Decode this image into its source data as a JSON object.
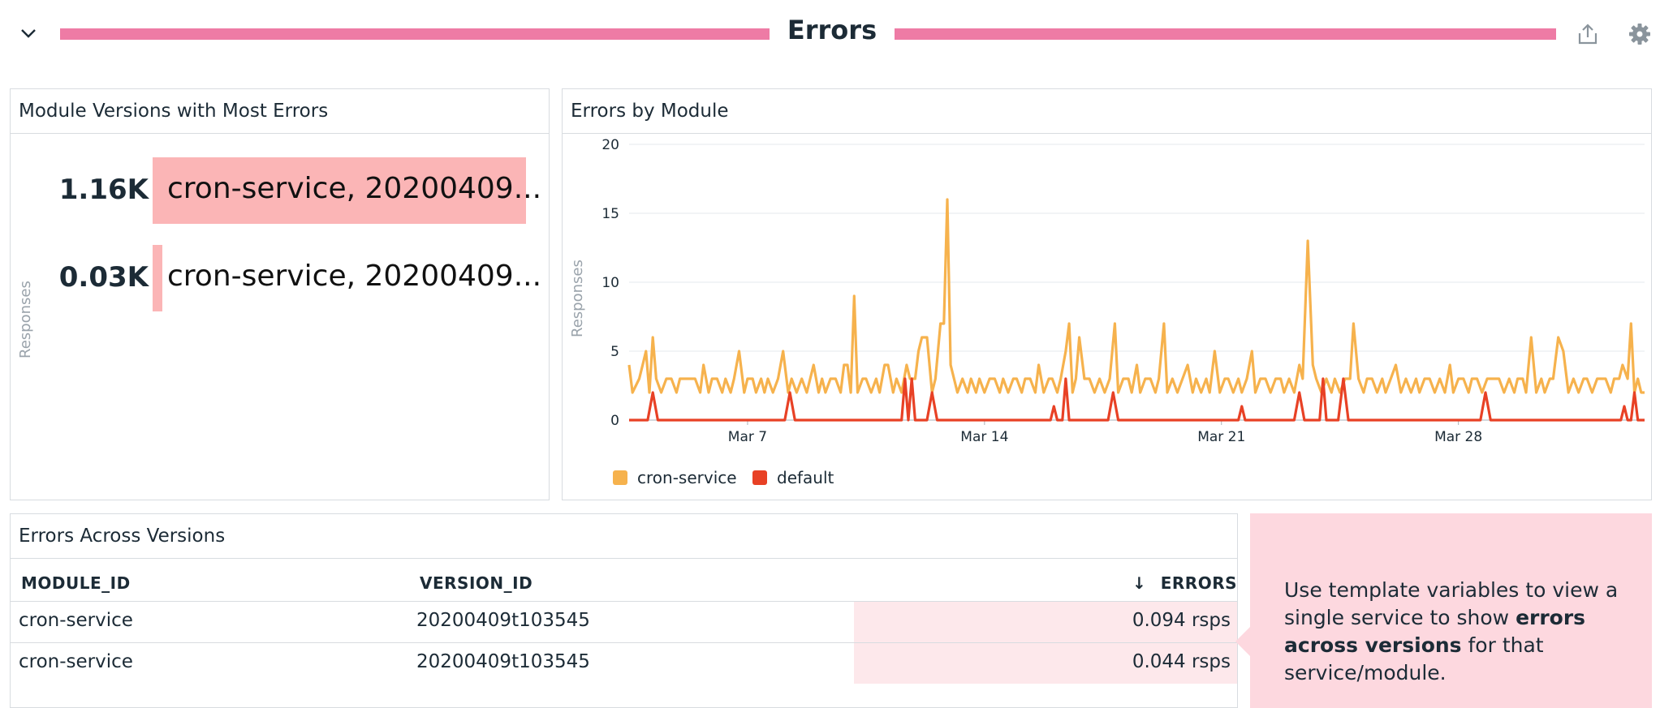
{
  "group": {
    "title": "Errors",
    "accent_color": "#ee7ba5",
    "icons": [
      "chevron-down-icon",
      "share-icon",
      "gear-icon"
    ]
  },
  "toplist": {
    "title": "Module Versions with Most Errors",
    "axis_label": "Responses",
    "bar_color": "#fbb5b6",
    "rows": [
      {
        "value": "1.16K",
        "amount": 1.16,
        "label": "cron-service, 20200409..."
      },
      {
        "value": "0.03K",
        "amount": 0.03,
        "label": "cron-service, 20200409..."
      }
    ]
  },
  "timeseries": {
    "title": "Errors by Module",
    "legend": [
      {
        "name": "cron-service",
        "color": "#f6b24d"
      },
      {
        "name": "default",
        "color": "#e84125"
      }
    ]
  },
  "chart_data": {
    "type": "line",
    "ylabel": "Responses",
    "ylim": [
      0,
      20
    ],
    "yticks": [
      0,
      5,
      10,
      15,
      20
    ],
    "xticks": [
      {
        "label": "Mar 7",
        "day": 7
      },
      {
        "label": "Mar 14",
        "day": 14
      },
      {
        "label": "Mar 21",
        "day": 21
      },
      {
        "label": "Mar 28",
        "day": 28
      }
    ],
    "xlim_days": [
      3.5,
      33.5
    ],
    "grid": true,
    "legend_position": "bottom-left",
    "series": [
      {
        "name": "cron-service",
        "color": "#f6b24d",
        "points": [
          [
            3.5,
            4
          ],
          [
            3.6,
            2
          ],
          [
            3.8,
            3
          ],
          [
            3.9,
            4
          ],
          [
            4.0,
            5
          ],
          [
            4.1,
            2
          ],
          [
            4.2,
            6
          ],
          [
            4.3,
            3
          ],
          [
            4.45,
            2
          ],
          [
            4.6,
            3
          ],
          [
            4.75,
            3
          ],
          [
            4.9,
            2
          ],
          [
            5.0,
            3
          ],
          [
            5.15,
            3
          ],
          [
            5.3,
            3
          ],
          [
            5.45,
            3
          ],
          [
            5.6,
            2
          ],
          [
            5.7,
            4
          ],
          [
            5.85,
            2
          ],
          [
            5.95,
            3
          ],
          [
            6.1,
            3
          ],
          [
            6.25,
            2
          ],
          [
            6.35,
            3
          ],
          [
            6.5,
            2
          ],
          [
            6.6,
            3
          ],
          [
            6.75,
            5
          ],
          [
            6.9,
            2
          ],
          [
            7.0,
            3
          ],
          [
            7.15,
            3
          ],
          [
            7.25,
            2
          ],
          [
            7.4,
            3
          ],
          [
            7.5,
            2
          ],
          [
            7.6,
            3
          ],
          [
            7.75,
            2
          ],
          [
            7.9,
            3
          ],
          [
            8.05,
            5
          ],
          [
            8.2,
            2
          ],
          [
            8.3,
            3
          ],
          [
            8.45,
            2
          ],
          [
            8.6,
            3
          ],
          [
            8.75,
            2
          ],
          [
            8.85,
            3
          ],
          [
            8.95,
            4
          ],
          [
            9.1,
            2
          ],
          [
            9.2,
            3
          ],
          [
            9.3,
            2
          ],
          [
            9.45,
            3
          ],
          [
            9.6,
            3
          ],
          [
            9.75,
            2
          ],
          [
            9.85,
            4
          ],
          [
            9.95,
            4
          ],
          [
            10.05,
            2
          ],
          [
            10.15,
            9
          ],
          [
            10.25,
            2
          ],
          [
            10.4,
            3
          ],
          [
            10.5,
            3
          ],
          [
            10.65,
            2
          ],
          [
            10.8,
            3
          ],
          [
            10.9,
            2
          ],
          [
            11.05,
            4
          ],
          [
            11.15,
            4
          ],
          [
            11.3,
            2
          ],
          [
            11.4,
            3
          ],
          [
            11.55,
            2
          ],
          [
            11.7,
            4
          ],
          [
            11.8,
            3
          ],
          [
            11.95,
            3
          ],
          [
            12.05,
            5
          ],
          [
            12.15,
            6
          ],
          [
            12.3,
            6
          ],
          [
            12.45,
            2
          ],
          [
            12.55,
            3
          ],
          [
            12.7,
            7
          ],
          [
            12.8,
            7
          ],
          [
            12.9,
            16
          ],
          [
            13.0,
            4
          ],
          [
            13.1,
            3
          ],
          [
            13.2,
            2
          ],
          [
            13.35,
            3
          ],
          [
            13.5,
            2
          ],
          [
            13.6,
            3
          ],
          [
            13.75,
            2
          ],
          [
            13.85,
            3
          ],
          [
            14.0,
            2
          ],
          [
            14.15,
            3
          ],
          [
            14.3,
            3
          ],
          [
            14.45,
            2
          ],
          [
            14.55,
            3
          ],
          [
            14.7,
            2
          ],
          [
            14.85,
            3
          ],
          [
            14.95,
            3
          ],
          [
            15.1,
            2
          ],
          [
            15.2,
            3
          ],
          [
            15.35,
            3
          ],
          [
            15.5,
            2
          ],
          [
            15.6,
            4
          ],
          [
            15.75,
            2
          ],
          [
            15.9,
            3
          ],
          [
            16.0,
            3
          ],
          [
            16.15,
            2
          ],
          [
            16.25,
            3
          ],
          [
            16.4,
            5
          ],
          [
            16.5,
            7
          ],
          [
            16.6,
            2
          ],
          [
            16.7,
            3
          ],
          [
            16.8,
            6
          ],
          [
            16.95,
            3
          ],
          [
            17.1,
            3
          ],
          [
            17.25,
            2
          ],
          [
            17.4,
            3
          ],
          [
            17.55,
            2
          ],
          [
            17.7,
            3
          ],
          [
            17.85,
            7
          ],
          [
            17.95,
            2
          ],
          [
            18.1,
            3
          ],
          [
            18.25,
            3
          ],
          [
            18.35,
            2
          ],
          [
            18.5,
            4
          ],
          [
            18.6,
            2
          ],
          [
            18.75,
            3
          ],
          [
            18.9,
            3
          ],
          [
            19.05,
            2
          ],
          [
            19.15,
            3
          ],
          [
            19.3,
            7
          ],
          [
            19.4,
            2
          ],
          [
            19.55,
            3
          ],
          [
            19.7,
            2
          ],
          [
            19.85,
            3
          ],
          [
            20.0,
            4
          ],
          [
            20.15,
            2
          ],
          [
            20.25,
            3
          ],
          [
            20.4,
            2
          ],
          [
            20.55,
            3
          ],
          [
            20.65,
            2
          ],
          [
            20.8,
            5
          ],
          [
            20.95,
            2
          ],
          [
            21.1,
            3
          ],
          [
            21.2,
            3
          ],
          [
            21.35,
            2
          ],
          [
            21.5,
            3
          ],
          [
            21.6,
            2
          ],
          [
            21.75,
            3
          ],
          [
            21.9,
            5
          ],
          [
            22.0,
            2
          ],
          [
            22.15,
            3
          ],
          [
            22.3,
            3
          ],
          [
            22.45,
            2
          ],
          [
            22.6,
            3
          ],
          [
            22.75,
            3
          ],
          [
            22.85,
            2
          ],
          [
            23.0,
            3
          ],
          [
            23.15,
            2
          ],
          [
            23.3,
            4
          ],
          [
            23.4,
            3
          ],
          [
            23.55,
            13
          ],
          [
            23.7,
            4
          ],
          [
            23.8,
            3
          ],
          [
            23.95,
            2
          ],
          [
            24.1,
            3
          ],
          [
            24.25,
            2
          ],
          [
            24.35,
            3
          ],
          [
            24.5,
            2
          ],
          [
            24.65,
            3
          ],
          [
            24.8,
            3
          ],
          [
            24.9,
            7
          ],
          [
            25.05,
            3
          ],
          [
            25.2,
            2
          ],
          [
            25.3,
            3
          ],
          [
            25.45,
            3
          ],
          [
            25.6,
            2
          ],
          [
            25.75,
            3
          ],
          [
            25.85,
            2
          ],
          [
            26.0,
            3
          ],
          [
            26.15,
            4
          ],
          [
            26.3,
            2
          ],
          [
            26.45,
            3
          ],
          [
            26.6,
            2
          ],
          [
            26.75,
            3
          ],
          [
            26.85,
            2
          ],
          [
            27.0,
            3
          ],
          [
            27.15,
            3
          ],
          [
            27.3,
            2
          ],
          [
            27.45,
            3
          ],
          [
            27.6,
            2
          ],
          [
            27.75,
            4
          ],
          [
            27.85,
            2
          ],
          [
            28.0,
            3
          ],
          [
            28.15,
            3
          ],
          [
            28.3,
            2
          ],
          [
            28.4,
            3
          ],
          [
            28.55,
            3
          ],
          [
            28.7,
            2
          ],
          [
            28.85,
            3
          ],
          [
            28.95,
            3
          ],
          [
            29.1,
            3
          ],
          [
            29.2,
            3
          ],
          [
            29.35,
            2
          ],
          [
            29.5,
            3
          ],
          [
            29.65,
            2
          ],
          [
            29.75,
            3
          ],
          [
            29.9,
            3
          ],
          [
            30.0,
            2
          ],
          [
            30.15,
            6
          ],
          [
            30.3,
            2
          ],
          [
            30.45,
            3
          ],
          [
            30.55,
            2
          ],
          [
            30.7,
            3
          ],
          [
            30.8,
            3
          ],
          [
            30.95,
            6
          ],
          [
            31.1,
            5
          ],
          [
            31.25,
            2
          ],
          [
            31.4,
            3
          ],
          [
            31.55,
            2
          ],
          [
            31.7,
            3
          ],
          [
            31.8,
            3
          ],
          [
            31.95,
            2
          ],
          [
            32.1,
            3
          ],
          [
            32.2,
            3
          ],
          [
            32.35,
            3
          ],
          [
            32.5,
            2
          ],
          [
            32.6,
            3
          ],
          [
            32.75,
            3
          ],
          [
            32.85,
            4
          ],
          [
            33.0,
            3
          ],
          [
            33.1,
            7
          ],
          [
            33.2,
            2
          ],
          [
            33.3,
            3
          ],
          [
            33.4,
            2
          ],
          [
            33.5,
            2
          ]
        ]
      },
      {
        "name": "default",
        "color": "#e84125",
        "points": [
          [
            3.5,
            0
          ],
          [
            4.05,
            0
          ],
          [
            4.2,
            2
          ],
          [
            4.35,
            0
          ],
          [
            8.1,
            0
          ],
          [
            8.25,
            2
          ],
          [
            8.4,
            0
          ],
          [
            11.55,
            0
          ],
          [
            11.65,
            3
          ],
          [
            11.75,
            0
          ],
          [
            11.85,
            3
          ],
          [
            11.95,
            0
          ],
          [
            12.3,
            0
          ],
          [
            12.45,
            2
          ],
          [
            12.6,
            0
          ],
          [
            15.95,
            0
          ],
          [
            16.05,
            1
          ],
          [
            16.15,
            0
          ],
          [
            16.3,
            0
          ],
          [
            16.4,
            3
          ],
          [
            16.5,
            0
          ],
          [
            17.65,
            0
          ],
          [
            17.8,
            2
          ],
          [
            17.95,
            0
          ],
          [
            21.5,
            0
          ],
          [
            21.6,
            1
          ],
          [
            21.7,
            0
          ],
          [
            23.15,
            0
          ],
          [
            23.3,
            2
          ],
          [
            23.45,
            0
          ],
          [
            23.9,
            0
          ],
          [
            24.0,
            3
          ],
          [
            24.1,
            0
          ],
          [
            24.45,
            0
          ],
          [
            24.6,
            3
          ],
          [
            24.75,
            0
          ],
          [
            28.65,
            0
          ],
          [
            28.8,
            2
          ],
          [
            28.95,
            0
          ],
          [
            32.8,
            0
          ],
          [
            32.9,
            1
          ],
          [
            33.0,
            0
          ],
          [
            33.1,
            0
          ],
          [
            33.2,
            2
          ],
          [
            33.3,
            0
          ],
          [
            33.5,
            0
          ]
        ]
      }
    ]
  },
  "table": {
    "title": "Errors Across Versions",
    "columns": [
      "MODULE_ID",
      "VERSION_ID",
      "ERRORS"
    ],
    "sort_indicator": "↓",
    "rows": [
      {
        "module_id": "cron-service",
        "version_id": "20200409t103545",
        "errors": "0.094 rsps"
      },
      {
        "module_id": "cron-service",
        "version_id": "20200409t103545",
        "errors": "0.044 rsps"
      }
    ]
  },
  "note": {
    "text_before": "Use template variables to view a single service to show ",
    "text_bold": "errors across versions",
    "text_after": " for that service/module.",
    "background": "#fdd8df"
  }
}
